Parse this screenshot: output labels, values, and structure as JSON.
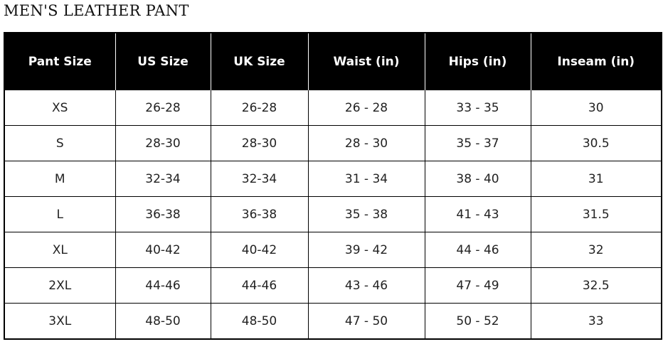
{
  "title": "MEN'S LEATHER PANT",
  "headers": [
    "Pant Size",
    "US Size",
    "UK Size",
    "Waist (in)",
    "Hips (in)",
    "Inseam (in)"
  ],
  "rows": [
    [
      "XS",
      "26-28",
      "26-28",
      "26 - 28",
      "33 - 35",
      "30"
    ],
    [
      "S",
      "28-30",
      "28-30",
      "28 - 30",
      "35 - 37",
      "30.5"
    ],
    [
      "M",
      "32-34",
      "32-34",
      "31 - 34",
      "38 - 40",
      "31"
    ],
    [
      "L",
      "36-38",
      "36-38",
      "35 - 38",
      "41 - 43",
      "31.5"
    ],
    [
      "XL",
      "40-42",
      "40-42",
      "39 - 42",
      "44 - 46",
      "32"
    ],
    [
      "2XL",
      "44-46",
      "44-46",
      "43 - 46",
      "47 - 49",
      "32.5"
    ],
    [
      "3XL",
      "48-50",
      "48-50",
      "47 - 50",
      "50 - 52",
      "33"
    ]
  ]
}
